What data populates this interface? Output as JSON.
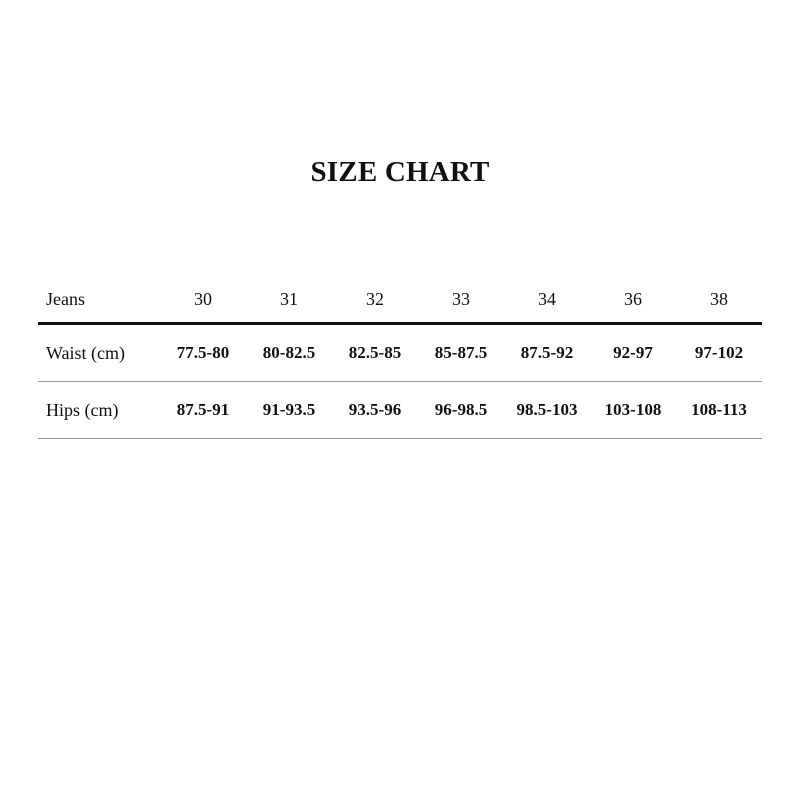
{
  "title": "SIZE CHART",
  "table": {
    "header": {
      "label": "Jeans",
      "sizes": [
        "30",
        "31",
        "32",
        "33",
        "34",
        "36",
        "38"
      ]
    },
    "rows": [
      {
        "label": "Waist (cm)",
        "values": [
          "77.5-80",
          "80-82.5",
          "82.5-85",
          "85-87.5",
          "87.5-92",
          "92-97",
          "97-102"
        ]
      },
      {
        "label": "Hips (cm)",
        "values": [
          "87.5-91",
          "91-93.5",
          "93.5-96",
          "96-98.5",
          "98.5-103",
          "103-108",
          "108-113"
        ]
      }
    ]
  }
}
